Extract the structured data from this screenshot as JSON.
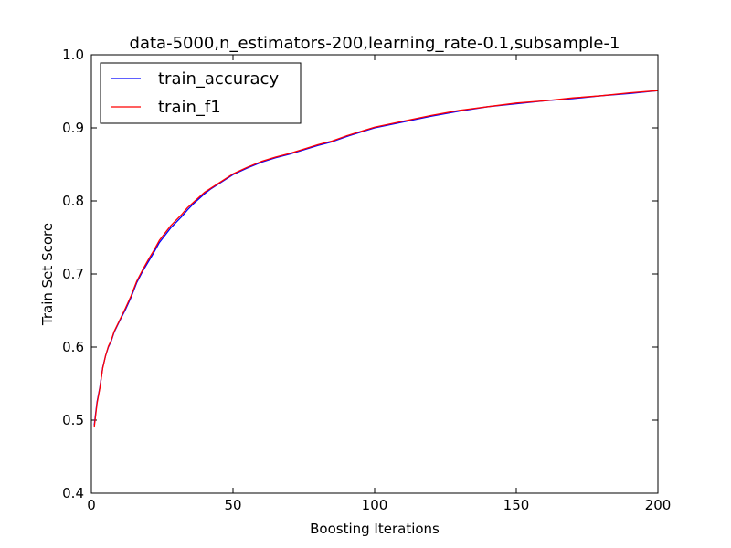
{
  "chart_data": {
    "type": "line",
    "title": "data-5000,n_estimators-200,learning_rate-0.1,subsample-1",
    "xlabel": "Boosting Iterations",
    "ylabel": "Train Set Score",
    "xlim": [
      0,
      200
    ],
    "ylim": [
      0.4,
      1.0
    ],
    "x_ticks": [
      0,
      50,
      100,
      150,
      200
    ],
    "x_tick_labels": [
      "0",
      "50",
      "100",
      "150",
      "200"
    ],
    "y_ticks": [
      0.4,
      0.5,
      0.6,
      0.7,
      0.8,
      0.9,
      1.0
    ],
    "y_tick_labels": [
      "0.4",
      "0.5",
      "0.6",
      "0.7",
      "0.8",
      "0.9",
      "1.0"
    ],
    "grid": false,
    "legend_position": "top-left",
    "x": [
      1,
      2,
      3,
      4,
      5,
      6,
      7,
      8,
      9,
      10,
      12,
      14,
      16,
      18,
      20,
      22,
      24,
      26,
      28,
      30,
      32,
      34,
      36,
      38,
      40,
      42,
      44,
      46,
      48,
      50,
      55,
      60,
      65,
      70,
      75,
      80,
      85,
      90,
      95,
      100,
      110,
      120,
      130,
      140,
      150,
      160,
      170,
      180,
      190,
      200
    ],
    "series": [
      {
        "name": "train_accuracy",
        "color": "#0000ff",
        "values": [
          0.493,
          0.525,
          0.545,
          0.572,
          0.588,
          0.6,
          0.608,
          0.62,
          0.628,
          0.636,
          0.651,
          0.668,
          0.688,
          0.703,
          0.716,
          0.729,
          0.743,
          0.753,
          0.763,
          0.771,
          0.779,
          0.788,
          0.796,
          0.803,
          0.81,
          0.816,
          0.821,
          0.826,
          0.831,
          0.836,
          0.845,
          0.853,
          0.859,
          0.864,
          0.87,
          0.876,
          0.881,
          0.888,
          0.894,
          0.9,
          0.908,
          0.916,
          0.923,
          0.929,
          0.933,
          0.937,
          0.94,
          0.944,
          0.947,
          0.951
        ]
      },
      {
        "name": "train_f1",
        "color": "#ff0000",
        "values": [
          0.49,
          0.523,
          0.544,
          0.571,
          0.588,
          0.601,
          0.609,
          0.621,
          0.629,
          0.637,
          0.653,
          0.67,
          0.69,
          0.705,
          0.719,
          0.732,
          0.746,
          0.756,
          0.766,
          0.774,
          0.782,
          0.791,
          0.798,
          0.805,
          0.812,
          0.817,
          0.822,
          0.827,
          0.832,
          0.837,
          0.846,
          0.854,
          0.86,
          0.865,
          0.871,
          0.877,
          0.882,
          0.889,
          0.895,
          0.901,
          0.909,
          0.917,
          0.924,
          0.929,
          0.934,
          0.937,
          0.941,
          0.944,
          0.948,
          0.951
        ]
      }
    ]
  }
}
